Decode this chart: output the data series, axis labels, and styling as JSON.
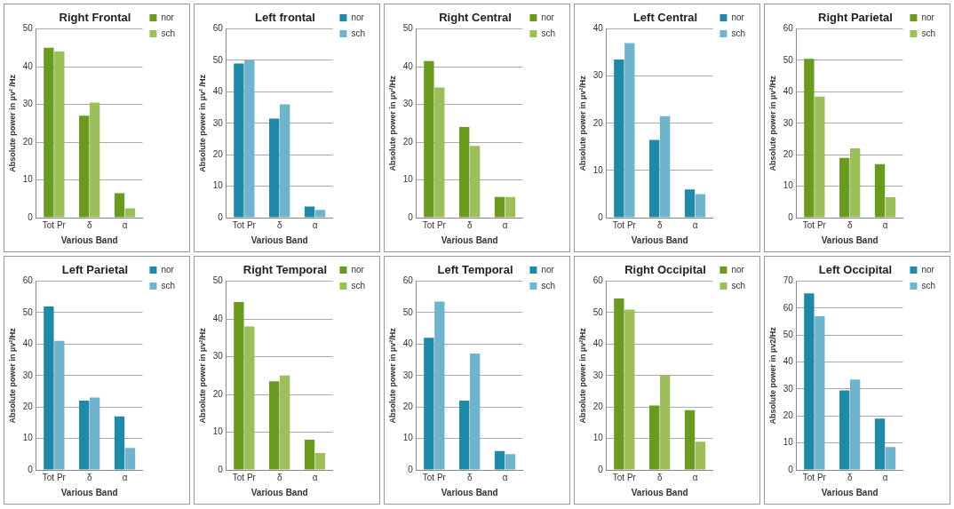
{
  "chart_data": [
    {
      "type": "bar",
      "title": "Right Frontal",
      "xlabel": "Various Band",
      "ylabel": "Absolute power in µv² /Hz",
      "categories": [
        "Tot Pr",
        "δ",
        "α"
      ],
      "series": [
        {
          "name": "nor",
          "color": "#6a9a1f",
          "values": [
            45,
            27,
            6.5
          ]
        },
        {
          "name": "sch",
          "color": "#9dbf5a",
          "values": [
            44,
            30.5,
            2.5
          ]
        }
      ],
      "ylim": [
        0,
        50
      ],
      "yticks": [
        0,
        10,
        20,
        30,
        40,
        50
      ],
      "grid": "y",
      "legend": "top right"
    },
    {
      "type": "bar",
      "title": "Left frontal",
      "xlabel": "Various Band",
      "ylabel": "Absolute power in µv² /Hz",
      "categories": [
        "Tot Pr",
        "δ",
        "α"
      ],
      "series": [
        {
          "name": "nor",
          "color": "#1f8aa8",
          "values": [
            49,
            31.5,
            3.5
          ]
        },
        {
          "name": "sch",
          "color": "#6fb4cc",
          "values": [
            50,
            36,
            2.5
          ]
        }
      ],
      "ylim": [
        0,
        60
      ],
      "yticks": [
        0,
        10,
        20,
        30,
        40,
        50,
        60
      ],
      "grid": "y",
      "legend": "top right"
    },
    {
      "type": "bar",
      "title": "Right Central",
      "xlabel": "Various Band",
      "ylabel": "Absolute power in µv²/Hz",
      "categories": [
        "Tot Pr",
        "δ",
        "α"
      ],
      "series": [
        {
          "name": "nor",
          "color": "#6a9a1f",
          "values": [
            41.5,
            24,
            5.5
          ]
        },
        {
          "name": "sch",
          "color": "#9dbf5a",
          "values": [
            34.5,
            19,
            5.5
          ]
        }
      ],
      "ylim": [
        0,
        50
      ],
      "yticks": [
        0,
        10,
        20,
        30,
        40,
        50
      ],
      "grid": "y",
      "legend": "top right"
    },
    {
      "type": "bar",
      "title": "Left Central",
      "xlabel": "Various Band",
      "ylabel": "Absolute power in µv²/Hz",
      "categories": [
        "Tot Pr",
        "δ",
        "α"
      ],
      "series": [
        {
          "name": "nor",
          "color": "#1f8aa8",
          "values": [
            33.5,
            16.5,
            6
          ]
        },
        {
          "name": "sch",
          "color": "#6fb4cc",
          "values": [
            37,
            21.5,
            5
          ]
        }
      ],
      "ylim": [
        0,
        40
      ],
      "yticks": [
        0,
        10,
        20,
        30,
        40
      ],
      "grid": "y",
      "legend": "top right"
    },
    {
      "type": "bar",
      "title": "Right Parietal",
      "xlabel": "Various Band",
      "ylabel": "Absolute power in µv²/Hz",
      "categories": [
        "Tot Pr",
        "δ",
        "α"
      ],
      "series": [
        {
          "name": "nor",
          "color": "#6a9a1f",
          "values": [
            50.5,
            19,
            17
          ]
        },
        {
          "name": "sch",
          "color": "#9dbf5a",
          "values": [
            38.5,
            22,
            6.5
          ]
        }
      ],
      "ylim": [
        0,
        60
      ],
      "yticks": [
        0,
        10,
        20,
        30,
        40,
        50,
        60
      ],
      "grid": "y",
      "legend": "top right"
    },
    {
      "type": "bar",
      "title": "Left Parietal",
      "xlabel": "Various Band",
      "ylabel": "Absolute power in µv²/Hz",
      "categories": [
        "Tot Pr",
        "δ",
        "α"
      ],
      "series": [
        {
          "name": "nor",
          "color": "#1f8aa8",
          "values": [
            52,
            22,
            17
          ]
        },
        {
          "name": "sch",
          "color": "#6fb4cc",
          "values": [
            41,
            23,
            7
          ]
        }
      ],
      "ylim": [
        0,
        60
      ],
      "yticks": [
        0,
        10,
        20,
        30,
        40,
        50,
        60
      ],
      "grid": "y",
      "legend": "top right"
    },
    {
      "type": "bar",
      "title": "Right Temporal",
      "xlabel": "Various Band",
      "ylabel": "Absolute power in µv²/Hz",
      "categories": [
        "Tot Pr",
        "δ",
        "α"
      ],
      "series": [
        {
          "name": "nor",
          "color": "#6a9a1f",
          "values": [
            44.5,
            23.5,
            8
          ]
        },
        {
          "name": "sch",
          "color": "#9dbf5a",
          "values": [
            38,
            25,
            4.5
          ]
        }
      ],
      "ylim": [
        0,
        50
      ],
      "yticks": [
        0,
        10,
        20,
        30,
        40,
        50
      ],
      "grid": "y",
      "legend": "top right"
    },
    {
      "type": "bar",
      "title": "Left Temporal",
      "xlabel": "Various Band",
      "ylabel": "Absolute power in µv²/Hz",
      "categories": [
        "Tot Pr",
        "δ",
        "α"
      ],
      "series": [
        {
          "name": "nor",
          "color": "#1f8aa8",
          "values": [
            42,
            22,
            6
          ]
        },
        {
          "name": "sch",
          "color": "#6fb4cc",
          "values": [
            53.5,
            37,
            5
          ]
        }
      ],
      "ylim": [
        0,
        60
      ],
      "yticks": [
        0,
        10,
        20,
        30,
        40,
        50,
        60
      ],
      "grid": "y",
      "legend": "top right"
    },
    {
      "type": "bar",
      "title": "Right Occipital",
      "xlabel": "Various Band",
      "ylabel": "Absolute power in µv²/Hz",
      "categories": [
        "Tot Pr",
        "δ",
        "α"
      ],
      "series": [
        {
          "name": "nor",
          "color": "#6a9a1f",
          "values": [
            54.5,
            20.5,
            19
          ]
        },
        {
          "name": "sch",
          "color": "#9dbf5a",
          "values": [
            51,
            30,
            9
          ]
        }
      ],
      "ylim": [
        0,
        60
      ],
      "yticks": [
        0,
        10,
        20,
        30,
        40,
        50,
        60
      ],
      "grid": "y",
      "legend": "top right"
    },
    {
      "type": "bar",
      "title": "Left Occipital",
      "xlabel": "Various Band",
      "ylabel": "Absolute power in µv2/Hz",
      "categories": [
        "Tot Pr",
        "δ",
        "α"
      ],
      "series": [
        {
          "name": "nor",
          "color": "#1f8aa8",
          "values": [
            65.5,
            29.5,
            19
          ]
        },
        {
          "name": "sch",
          "color": "#6fb4cc",
          "values": [
            57,
            33.5,
            8.5
          ]
        }
      ],
      "ylim": [
        0,
        70
      ],
      "yticks": [
        0,
        10,
        20,
        30,
        40,
        50,
        60,
        70
      ],
      "grid": "y",
      "legend": "top right"
    }
  ]
}
